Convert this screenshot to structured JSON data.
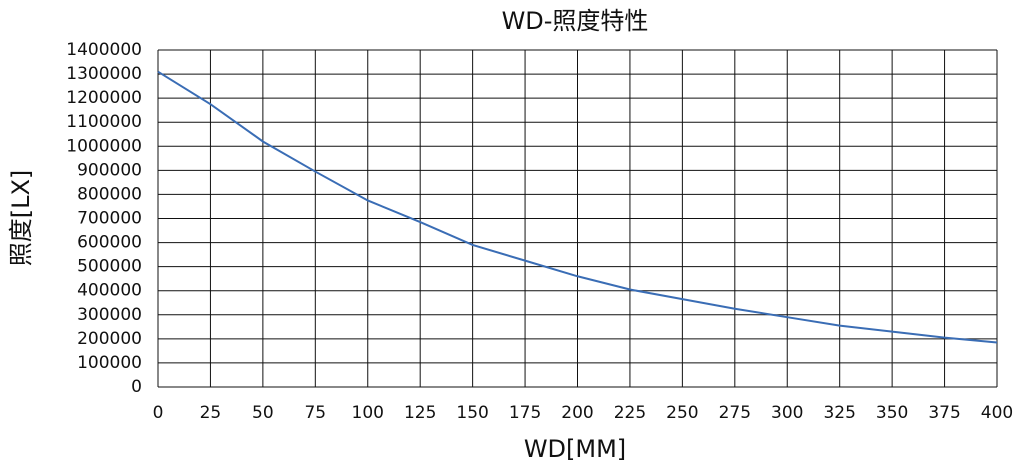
{
  "chart_data": {
    "type": "line",
    "title": "WD-照度特性",
    "x_label": "WD[MM]",
    "y_label": "照度[LX]",
    "x": [
      0,
      25,
      50,
      75,
      100,
      125,
      150,
      175,
      200,
      225,
      250,
      275,
      300,
      325,
      350,
      375,
      400
    ],
    "series": [
      {
        "name": "照度",
        "color": "#3a6db5",
        "values": [
          1310000,
          1175000,
          1020000,
          895000,
          775000,
          685000,
          590000,
          525000,
          460000,
          405000,
          365000,
          325000,
          290000,
          255000,
          230000,
          205000,
          185000
        ]
      }
    ],
    "xlim": [
      0,
      400
    ],
    "xticks": [
      0,
      25,
      50,
      75,
      100,
      125,
      150,
      175,
      200,
      225,
      250,
      275,
      300,
      325,
      350,
      375,
      400
    ],
    "ylim": [
      0,
      1400000
    ],
    "yticks": [
      0,
      100000,
      200000,
      300000,
      400000,
      500000,
      600000,
      700000,
      800000,
      900000,
      1000000,
      1100000,
      1200000,
      1300000,
      1400000
    ],
    "grid": true
  }
}
